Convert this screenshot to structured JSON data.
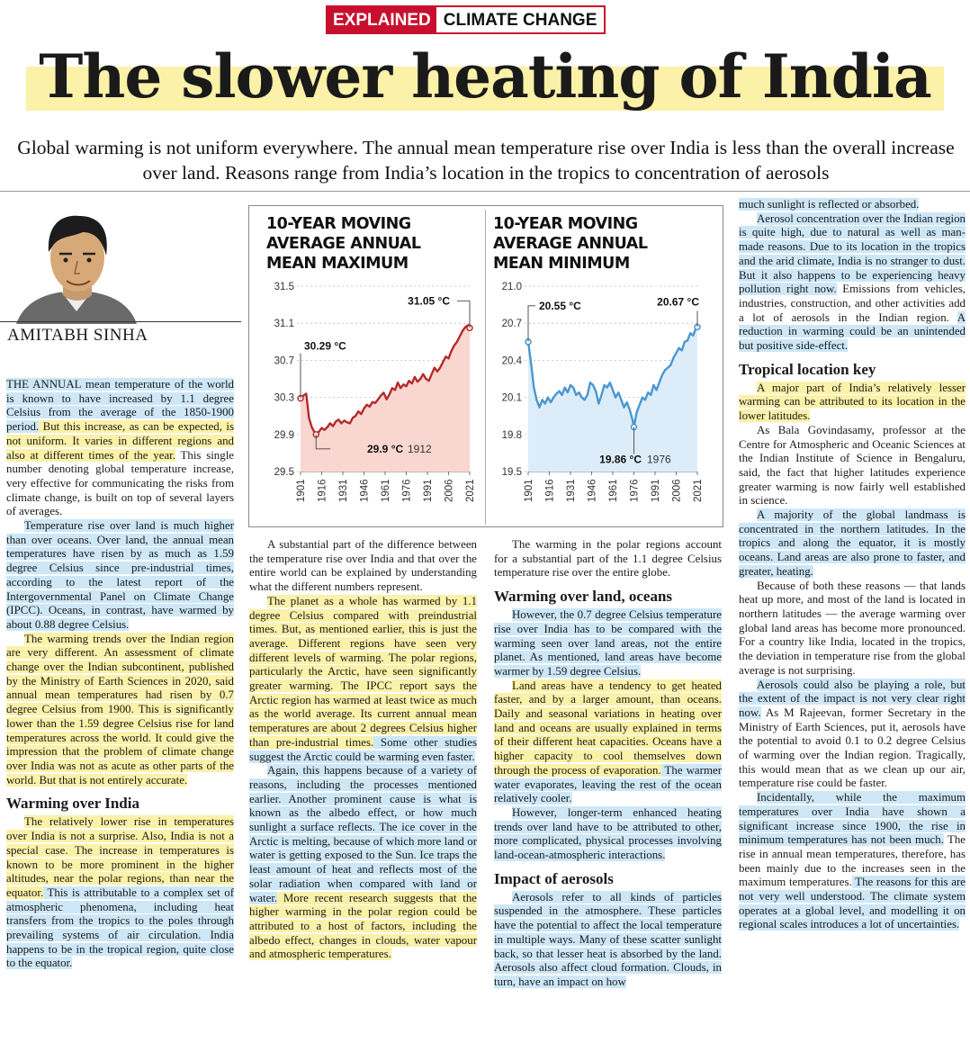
{
  "badge": {
    "section": "EXPLAINED",
    "topic": "CLIMATE CHANGE"
  },
  "headline": "The slower heating of India",
  "standfirst": "Global warming is not uniform everywhere. The annual mean temperature rise over India is less than the overall increase over land. Reasons range from India’s location in the tropics to concentration of aerosols",
  "byline": "AMITABH SINHA",
  "col1": {
    "p1a": "THE ANNUAL mean temperature of the world is known to have increased by 1.1 degree Celsius from the average of the 1850-1900 period.",
    "p1b": " But this increase, as can be expected, is not uniform. It varies in different regions and also at different times of the year.",
    "p1c": " This single number denoting global temperature increase, very effective for communicating the risks from climate change, is built on top of several layers of averages.",
    "p2a": "Temperature rise over land is much higher than over oceans. Over land, the annual mean temperatures have risen by as much as 1.59 degree Celsius since pre-industrial times,",
    "p2b": " according to the latest report of the Intergovernmental Panel on Climate Change (IPCC). Oceans, in contrast, have warmed by about 0.88 degree Celsius.",
    "p3": "The warming trends over the Indian region are very different. An assessment of climate change over the Indian subcontinent, published by the Ministry of Earth Sciences in 2020, said annual mean temperatures had risen by 0.7 degree Celsius from 1900. This is significantly lower than the 1.59 degree Celsius rise for land temperatures across the world. It could give the impression that the problem of climate change over India was not as acute as other parts of the world. But that is not entirely accurate.",
    "h1": "Warming over India",
    "p4a": "The relatively lower rise in temperatures over India is not a surprise. Also, India is not a special case. The increase in temperatures is known to be more prominent in the higher altitudes, near the polar regions, than near the equator.",
    "p4b": " This is attributable to a complex set of atmospheric phenomena, including heat transfers from the tropics to the poles through prevailing systems of air circulation. India happens to be in the tropical region, quite close to the equator."
  },
  "col2": {
    "p1": "A substantial part of the difference between the temperature rise over India and that over the entire world can be explained by understanding what the different numbers represent.",
    "p2a": "The planet as a whole has warmed by 1.1 degree Celsius compared with preindustrial times. But, as mentioned earlier, this is just the average. Different regions have seen very different levels of warming. The polar regions, particularly the Arctic, have seen significantly greater warming. The IPCC report says the Arctic region has warmed at least twice as much as the world average. Its current annual mean temperatures are about 2 degrees Celsius higher than pre-industrial times.",
    "p2b": " Some other studies suggest the Arctic could be warming even faster.",
    "p3a": "Again, this happens because of a variety of reasons, including the processes mentioned earlier. Another prominent cause is what is known as the albedo effect, or how much sunlight a surface reflects.",
    "p3b": " The ice cover in the Arctic is melting, because of which more land or water is getting exposed to the Sun. Ice traps the least amount of heat and reflects most of the solar radiation when compared with land or water.",
    "p3c": " More recent research suggests that the higher warming in the polar region could be attributed to a host of factors, including the albedo effect, changes in clouds, water vapour and atmospheric temperatures."
  },
  "col3": {
    "p1": "The warming in the polar regions account for a substantial part of the 1.1 degree Celsius temperature rise over the entire globe.",
    "h1": "Warming over land, oceans",
    "p2": "However, the 0.7 degree Celsius temperature rise over India has to be compared with the warming seen over land areas, not the entire planet. As mentioned, land areas have become warmer by 1.59 degree Celsius.",
    "p3a": "Land areas have a tendency to get heated faster, and by a larger amount, than oceans. Daily and seasonal variations in heating over land and oceans are usually explained in terms of their different heat capacities. Oceans have a higher capacity to cool themselves down through the process of evaporation.",
    "p3b": " The warmer water evaporates, leaving the rest of the ocean relatively cooler.",
    "p4": "However, longer-term enhanced heating trends over land have to be attributed to other, more complicated, physical processes involving land-ocean-atmospheric interactions.",
    "h2": "Impact of aerosols",
    "p5": "Aerosols refer to all kinds of particles suspended in the atmosphere. These particles have the potential to affect the local temperature in multiple ways. Many of these scatter sunlight back, so that lesser heat is absorbed by the land. Aerosols also affect cloud formation. Clouds, in turn, have an impact on how"
  },
  "col4": {
    "p0": "much sunlight is reflected or absorbed.",
    "p1a": "Aerosol concentration over the Indian region is quite high, due to natural as well as man-made reasons. Due to its location in the tropics and the arid climate, India is no stranger to dust. But it also happens to be experiencing heavy pollution right now.",
    "p1b": " Emissions from vehicles, industries, construction, and other activities add a lot of aerosols in the Indian region. ",
    "p1c": "A reduction in warming could be an unintended but positive side-effect.",
    "h1": "Tropical location key",
    "p2": "A major part of India’s relatively lesser warming can be attributed to its location in the lower latitudes.",
    "p3": "As Bala Govindasamy, professor at the Centre for Atmospheric and Oceanic Sciences at the Indian Institute of Science in Bengaluru, said, the fact that higher latitudes experience greater warming is now fairly well established in science.",
    "p4": "A majority of the global landmass is concentrated in the northern latitudes. In the tropics and along the equator, it is mostly oceans. Land areas are also prone to faster, and greater, heating.",
    "p5": "Because of both these reasons — that lands heat up more, and most of the land is located in northern latitudes — the average warming over global land areas has become more pronounced. For a country like India, located in the tropics, the deviation in temperature rise from the global average is not surprising.",
    "p6a": "Aerosols could also be playing a role, but the extent of the impact is not very clear right now.",
    "p6b": " As M Rajeevan, former Secretary in the Ministry of Earth Sciences, put it, aerosols have the potential to avoid 0.1 to 0.2 degree Celsius of warming over the Indian region. Tragically, this would mean that as we clean up our air, temperature rise could be faster.",
    "p7a": "Incidentally, while the maximum temperatures over India have shown a significant increase since 1900, the rise in minimum temperatures has not been much.",
    "p7b": " The rise in annual mean temperatures, therefore, has been mainly due to the increases seen in the maximum temperatures.",
    "p7c": " The reasons for this are not very well understood. The climate system operates at a global level, and modelling it on regional scales introduces a lot of uncertainties."
  },
  "chart_data": [
    {
      "type": "line",
      "title": "10-YEAR MOVING AVERAGE ANNUAL MEAN MAXIMUM",
      "color": "#b52a2a",
      "fill": "#f9d6d0",
      "x_ticks": [
        "1901",
        "1916",
        "1931",
        "1946",
        "1961",
        "1976",
        "1991",
        "2006",
        "2021"
      ],
      "y_ticks": [
        "31.5",
        "31.1",
        "30.7",
        "30.3",
        "29.9",
        "29.5"
      ],
      "ylim": [
        29.5,
        31.5
      ],
      "xlim": [
        1901,
        2021
      ],
      "annotations": [
        {
          "label": "30.29 °C",
          "year": "",
          "x": 1901,
          "y": 30.29
        },
        {
          "label": "29.9 °C",
          "year": "1912",
          "x": 1912,
          "y": 29.9
        },
        {
          "label": "31.05 °C",
          "year": "",
          "x": 2021,
          "y": 31.05
        }
      ],
      "x": [
        1901,
        1903,
        1905,
        1907,
        1909,
        1910,
        1912,
        1914,
        1916,
        1918,
        1920,
        1922,
        1924,
        1926,
        1928,
        1930,
        1932,
        1934,
        1936,
        1938,
        1940,
        1942,
        1944,
        1946,
        1948,
        1950,
        1952,
        1954,
        1956,
        1958,
        1960,
        1962,
        1964,
        1966,
        1968,
        1970,
        1972,
        1974,
        1976,
        1978,
        1980,
        1982,
        1984,
        1986,
        1988,
        1990,
        1992,
        1994,
        1996,
        1998,
        2000,
        2002,
        2004,
        2006,
        2008,
        2010,
        2012,
        2014,
        2016,
        2018,
        2020,
        2021
      ],
      "y": [
        30.29,
        30.32,
        30.34,
        30.08,
        29.98,
        29.95,
        29.9,
        29.93,
        29.97,
        29.95,
        29.98,
        30.02,
        29.99,
        30.04,
        30.06,
        30.02,
        30.05,
        30.03,
        30.02,
        30.08,
        30.1,
        30.15,
        30.12,
        30.18,
        30.22,
        30.2,
        30.25,
        30.24,
        30.28,
        30.32,
        30.35,
        30.28,
        30.33,
        30.4,
        30.38,
        30.46,
        30.4,
        30.44,
        30.42,
        30.48,
        30.45,
        30.52,
        30.47,
        30.5,
        30.55,
        30.5,
        30.48,
        30.55,
        30.62,
        30.58,
        30.62,
        30.68,
        30.74,
        30.72,
        30.8,
        30.86,
        30.9,
        30.96,
        31.02,
        31.06,
        31.08,
        31.05
      ]
    },
    {
      "type": "line",
      "title": "10-YEAR MOVING AVERAGE ANNUAL MEAN MINIMUM",
      "color": "#4a97cf",
      "fill": "#dcedf9",
      "x_ticks": [
        "1901",
        "1916",
        "1931",
        "1946",
        "1961",
        "1976",
        "1991",
        "2006",
        "2021"
      ],
      "y_ticks": [
        "21.0",
        "20.7",
        "20.4",
        "20.1",
        "19.8",
        "19.5"
      ],
      "ylim": [
        19.5,
        21.0
      ],
      "xlim": [
        1901,
        2021
      ],
      "annotations": [
        {
          "label": "20.55 °C",
          "year": "",
          "x": 1901,
          "y": 20.55
        },
        {
          "label": "19.86 °C",
          "year": "1976",
          "x": 1976,
          "y": 19.86
        },
        {
          "label": "20.67 °C",
          "year": "",
          "x": 2021,
          "y": 20.67
        }
      ],
      "x": [
        1901,
        1903,
        1905,
        1907,
        1909,
        1911,
        1913,
        1915,
        1917,
        1919,
        1921,
        1923,
        1925,
        1927,
        1929,
        1931,
        1933,
        1935,
        1937,
        1939,
        1941,
        1943,
        1945,
        1947,
        1949,
        1951,
        1953,
        1955,
        1957,
        1959,
        1961,
        1963,
        1965,
        1967,
        1969,
        1971,
        1973,
        1975,
        1976,
        1978,
        1980,
        1982,
        1984,
        1986,
        1988,
        1990,
        1992,
        1994,
        1996,
        1998,
        2000,
        2002,
        2004,
        2006,
        2008,
        2010,
        2012,
        2014,
        2016,
        2018,
        2020,
        2021
      ],
      "y": [
        20.55,
        20.38,
        20.18,
        20.08,
        20.02,
        20.08,
        20.05,
        20.1,
        20.06,
        20.1,
        20.13,
        20.15,
        20.12,
        20.18,
        20.14,
        20.2,
        20.18,
        20.12,
        20.14,
        20.1,
        20.08,
        20.12,
        20.22,
        20.2,
        20.15,
        20.05,
        20.12,
        20.2,
        20.18,
        20.22,
        20.16,
        20.1,
        20.14,
        20.08,
        20.02,
        20.06,
        20.0,
        19.92,
        19.86,
        19.98,
        20.04,
        20.1,
        20.08,
        20.14,
        20.12,
        20.2,
        20.16,
        20.22,
        20.28,
        20.32,
        20.34,
        20.36,
        20.42,
        20.46,
        20.5,
        20.48,
        20.55,
        20.56,
        20.62,
        20.6,
        20.66,
        20.67
      ]
    }
  ]
}
